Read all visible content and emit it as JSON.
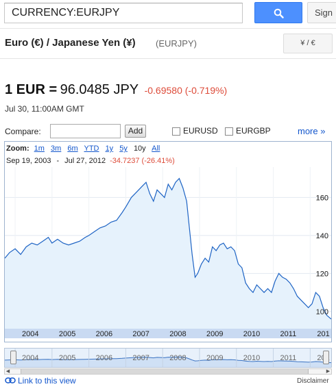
{
  "search": {
    "value": "CURRENCY:EURJPY",
    "signin_label": "Sign"
  },
  "header": {
    "pair_name": "Euro (€) / Japanese Yen (¥)",
    "symbol": "(EURJPY)",
    "invert_label": "¥ / €"
  },
  "quote": {
    "prefix": "1 EUR =",
    "rate": "96.0485 JPY",
    "change": "-0.69580 (-0.719%)",
    "time": "Jul 30, 11:00AM GMT",
    "change_color": "#dd4b39"
  },
  "compare": {
    "label": "Compare:",
    "add_label": "Add",
    "options": [
      "EURUSD",
      "EURGBP"
    ],
    "more_label": "more »"
  },
  "chart_controls": {
    "zoom_label": "Zoom:",
    "zoom_options": [
      "1m",
      "3m",
      "6m",
      "YTD",
      "1y",
      "5y",
      "10y",
      "All"
    ],
    "active_zoom": "10y",
    "range_start": "Sep 19, 2003",
    "range_end": "Jul 27, 2012",
    "range_change": "-34.7237 (-26.41%)"
  },
  "chart_data": {
    "type": "area",
    "title": "",
    "xlabel": "",
    "ylabel": "",
    "x_tick_labels": [
      "2004",
      "2005",
      "2006",
      "2007",
      "2008",
      "2009",
      "2010",
      "2011",
      "201"
    ],
    "y_tick_labels": [
      "100",
      "120",
      "140",
      "160"
    ],
    "ylim": [
      92,
      176
    ],
    "xlim": [
      2003.72,
      2012.57
    ],
    "grid": true,
    "line_color": "#1d63c4",
    "fill_color": "#e6f2fc",
    "series": [
      {
        "x": [
          2003.72,
          2003.85,
          2004.0,
          2004.15,
          2004.3,
          2004.45,
          2004.6,
          2004.75,
          2004.9,
          2005.0,
          2005.15,
          2005.3,
          2005.45,
          2005.6,
          2005.75,
          2005.9,
          2006.0,
          2006.15,
          2006.3,
          2006.45,
          2006.6,
          2006.75,
          2006.9,
          2007.0,
          2007.15,
          2007.3,
          2007.45,
          2007.55,
          2007.65,
          2007.75,
          2007.85,
          2007.95,
          2008.05,
          2008.15,
          2008.25,
          2008.35,
          2008.45,
          2008.55,
          2008.65,
          2008.72,
          2008.8,
          2008.88,
          2008.95,
          2009.05,
          2009.15,
          2009.25,
          2009.35,
          2009.45,
          2009.55,
          2009.65,
          2009.75,
          2009.85,
          2009.95,
          2010.05,
          2010.15,
          2010.25,
          2010.35,
          2010.45,
          2010.55,
          2010.65,
          2010.75,
          2010.85,
          2010.95,
          2011.05,
          2011.15,
          2011.25,
          2011.35,
          2011.45,
          2011.55,
          2011.65,
          2011.75,
          2011.85,
          2011.95,
          2012.05,
          2012.15,
          2012.25,
          2012.35,
          2012.45,
          2012.57
        ],
        "y": [
          128,
          131,
          133,
          130,
          134,
          136,
          135,
          137,
          139,
          136,
          138,
          136,
          135,
          136,
          137,
          139,
          140,
          142,
          144,
          145,
          147,
          148,
          152,
          155,
          160,
          163,
          166,
          168,
          162,
          158,
          164,
          162,
          160,
          167,
          164,
          168,
          170,
          165,
          158,
          145,
          130,
          118,
          120,
          125,
          128,
          126,
          134,
          132,
          135,
          136,
          133,
          134,
          132,
          125,
          123,
          115,
          112,
          110,
          114,
          112,
          110,
          112,
          110,
          116,
          120,
          118,
          117,
          115,
          112,
          108,
          106,
          104,
          102,
          104,
          110,
          108,
          102,
          98,
          96
        ]
      }
    ]
  },
  "navigator": {
    "year_labels": [
      "2004",
      "2005",
      "2006",
      "2007",
      "2008",
      "2009",
      "2010",
      "2011",
      "201"
    ]
  },
  "footer": {
    "link_label": "Link to this view",
    "disclaimer": "Disclaimer"
  },
  "colors": {
    "accent": "#4d90fe",
    "link": "#1155cc",
    "negative": "#dd4b39",
    "axis_band": "#c9daf2"
  }
}
